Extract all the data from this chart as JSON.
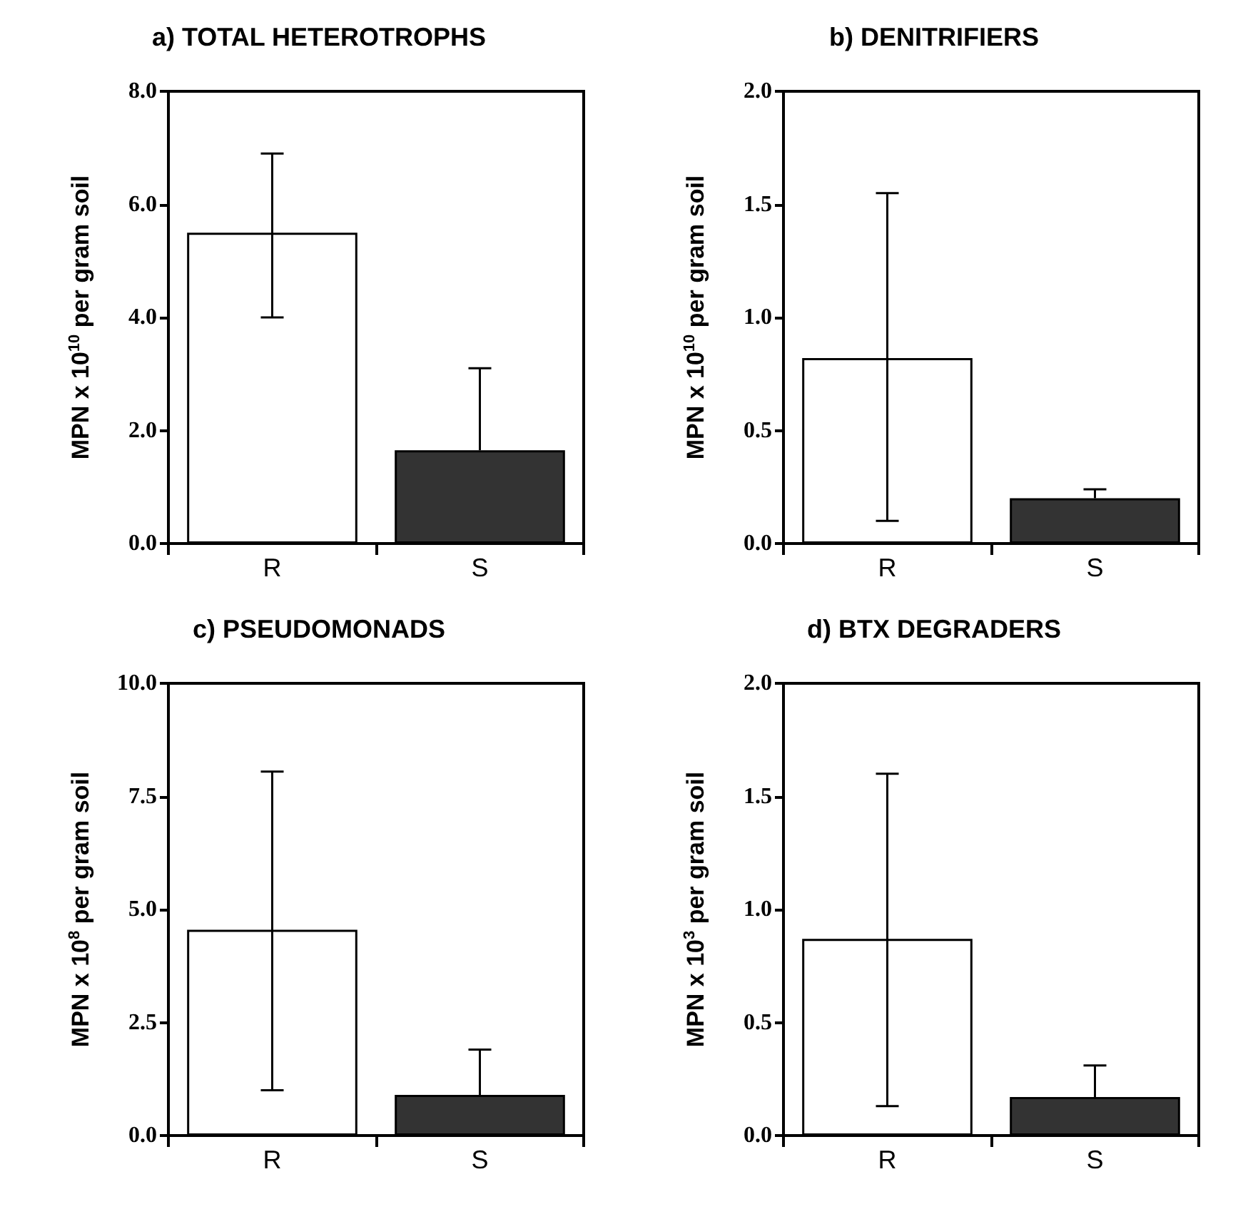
{
  "chart_data": [
    {
      "type": "bar",
      "title": "a) TOTAL HETEROTROPHS",
      "ylabel": "MPN x 10$^{10}$ per gram soil",
      "categories": [
        "R",
        "S"
      ],
      "values": [
        5.5,
        1.65
      ],
      "colors": [
        "#ffffff",
        "#333333"
      ],
      "errors": [
        [
          4.0,
          6.9
        ],
        [
          1.65,
          3.1
        ]
      ],
      "ylim": [
        0,
        8
      ],
      "yticks": [
        {
          "value": 0,
          "label": "0.0"
        },
        {
          "value": 2,
          "label": "2.0"
        },
        {
          "value": 4,
          "label": "4.0"
        },
        {
          "value": 6,
          "label": "6.0"
        },
        {
          "value": 8,
          "label": "8.0"
        }
      ],
      "grid": false
    },
    {
      "type": "bar",
      "title": "b) DENITRIFIERS",
      "ylabel": "MPN x 10$^{10}$ per gram soil",
      "categories": [
        "R",
        "S"
      ],
      "values": [
        0.82,
        0.2
      ],
      "colors": [
        "#ffffff",
        "#333333"
      ],
      "errors": [
        [
          0.1,
          1.55
        ],
        [
          0.2,
          0.24
        ]
      ],
      "ylim": [
        0,
        2
      ],
      "yticks": [
        {
          "value": 0,
          "label": "0.0"
        },
        {
          "value": 0.5,
          "label": "0.5"
        },
        {
          "value": 1,
          "label": "1.0"
        },
        {
          "value": 1.5,
          "label": "1.5"
        },
        {
          "value": 2,
          "label": "2.0"
        }
      ],
      "grid": false
    },
    {
      "type": "bar",
      "title": "c) PSEUDOMONADS",
      "ylabel": "MPN x 10$^{8}$ per gram soil",
      "categories": [
        "R",
        "S"
      ],
      "values": [
        4.55,
        0.9
      ],
      "colors": [
        "#ffffff",
        "#333333"
      ],
      "errors": [
        [
          1.0,
          8.05
        ],
        [
          0.9,
          1.9
        ]
      ],
      "ylim": [
        0,
        10
      ],
      "yticks": [
        {
          "value": 0,
          "label": "0.0"
        },
        {
          "value": 2.5,
          "label": "2.5"
        },
        {
          "value": 5,
          "label": "5.0"
        },
        {
          "value": 7.5,
          "label": "7.5"
        },
        {
          "value": 10,
          "label": "10.0"
        }
      ],
      "grid": false
    },
    {
      "type": "bar",
      "title": "d) BTX DEGRADERS",
      "ylabel": "MPN x 10$^{3}$ per gram soil",
      "categories": [
        "R",
        "S"
      ],
      "values": [
        0.87,
        0.17
      ],
      "colors": [
        "#ffffff",
        "#333333"
      ],
      "errors": [
        [
          0.13,
          1.6
        ],
        [
          0.17,
          0.31
        ]
      ],
      "ylim": [
        0,
        2
      ],
      "yticks": [
        {
          "value": 0,
          "label": "0.0"
        },
        {
          "value": 0.5,
          "label": "0.5"
        },
        {
          "value": 1,
          "label": "1.0"
        },
        {
          "value": 1.5,
          "label": "1.5"
        },
        {
          "value": 2,
          "label": "2.0"
        }
      ],
      "grid": false
    }
  ]
}
